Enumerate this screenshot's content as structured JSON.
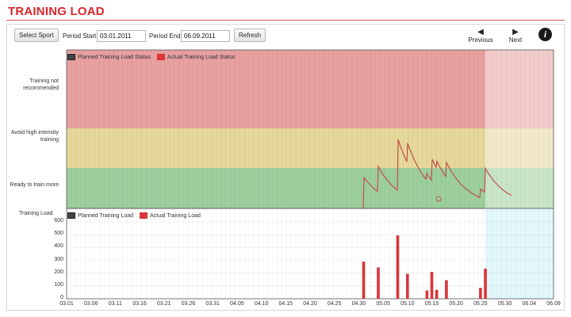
{
  "header": {
    "title": "TRAINING LOAD"
  },
  "toolbar": {
    "select_sport": "Select Sport",
    "period_start_label": "Period Start",
    "period_start_value": "03.01.2011",
    "period_end_label": "Period End",
    "period_end_value": "06.09.2011",
    "refresh": "Refresh",
    "previous": "Previous",
    "next": "Next",
    "info": "i"
  },
  "status_chart": {
    "legend": [
      "Planned Training Load Status",
      "Actual Training Load Status"
    ],
    "zones": [
      "Training not recommended",
      "Avoid high intensity training",
      "Ready to train more"
    ],
    "zone_colors": [
      "#e8a0a0",
      "#e6d79a",
      "#9dcf9c"
    ]
  },
  "load_chart": {
    "y_title": "Training Load",
    "legend": [
      "Planned Training Load",
      "Actual Training Load"
    ]
  },
  "chart_data": {
    "type": "bar",
    "title": "",
    "ylabel": "Training Load",
    "ylim": [
      0,
      600
    ],
    "y_ticks": [
      0,
      100,
      200,
      300,
      400,
      500,
      600
    ],
    "x_ticks": [
      "03.01",
      "03.06",
      "03.11",
      "03.16",
      "03.21",
      "03.26",
      "03.31",
      "04.05",
      "04.10",
      "04.15",
      "04.20",
      "04.25",
      "04.30",
      "05.05",
      "05.10",
      "05.15",
      "05.20",
      "05.25",
      "05.30",
      "06.04",
      "06.09"
    ],
    "series": [
      {
        "name": "Actual Training Load",
        "color": "#d9353a",
        "x": [
          "05.01",
          "05.04",
          "05.08",
          "05.10",
          "05.14",
          "05.15",
          "05.16",
          "05.18",
          "05.25",
          "05.26"
        ],
        "values": [
          290,
          245,
          495,
          195,
          65,
          210,
          70,
          145,
          85,
          235
        ]
      }
    ]
  }
}
